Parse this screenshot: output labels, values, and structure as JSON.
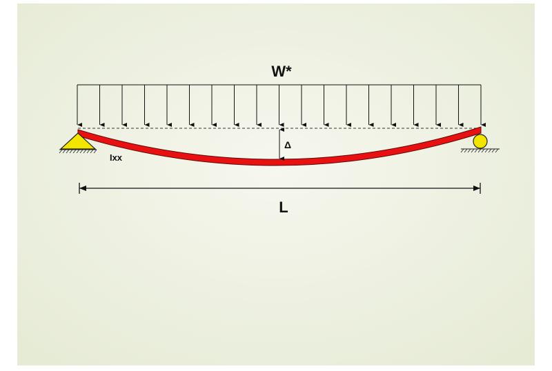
{
  "load_label": "W*",
  "deflection_label": "Δ",
  "inertia_label": "Ixx",
  "span_label": "L"
}
